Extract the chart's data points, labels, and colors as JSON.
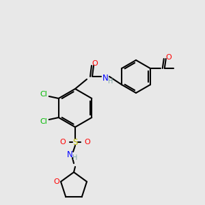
{
  "background_color": "#e8e8e8",
  "atom_colors": {
    "C": "#000000",
    "N": "#0000ff",
    "O": "#ff0000",
    "S": "#b8b800",
    "Cl": "#00bb00",
    "H": "#7fa8a8"
  },
  "bond_color": "#000000",
  "figsize": [
    3.0,
    3.0
  ],
  "dpi": 100
}
